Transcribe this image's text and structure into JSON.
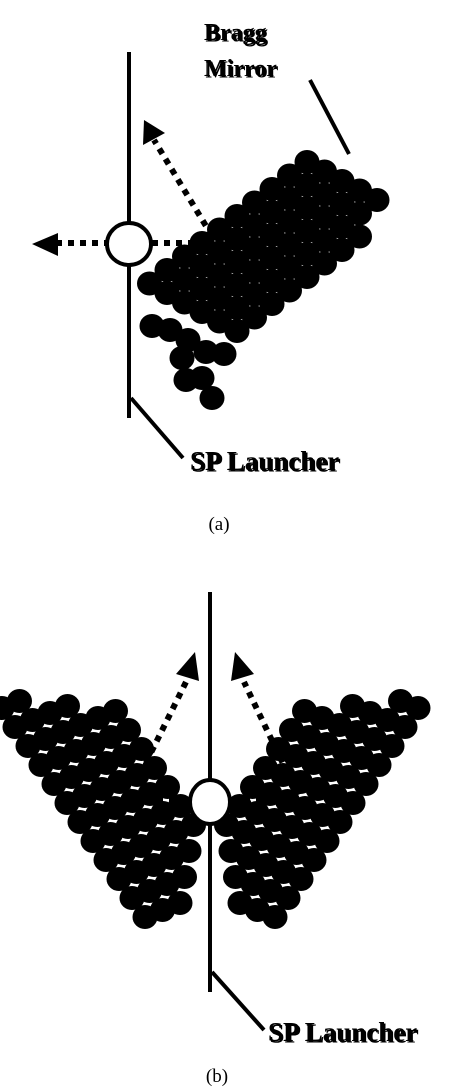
{
  "panel_a": {
    "mirror_label_line1": "Bragg",
    "mirror_label_line2": "Mirror",
    "launcher_label": "SP Launcher",
    "caption": "(a)"
  },
  "panel_b": {
    "launcher_label": "SP Launcher",
    "caption": "(b)"
  },
  "colors": {
    "ink": "#000000",
    "background": "#ffffff"
  }
}
